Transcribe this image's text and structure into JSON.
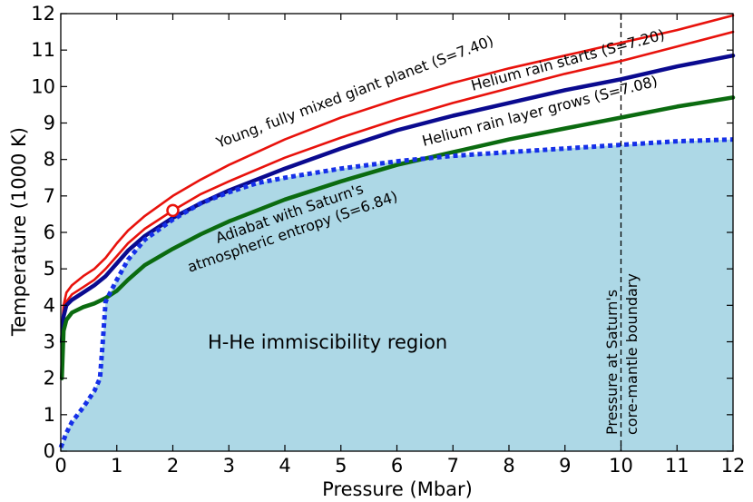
{
  "chart_data": {
    "type": "line",
    "title": "",
    "xlabel": "Pressure (Mbar)",
    "ylabel": "Temperature (1000 K)",
    "xlim": [
      0,
      12
    ],
    "ylim": [
      0,
      12
    ],
    "grid": false,
    "x_ticks": [
      "0",
      "1",
      "2",
      "3",
      "4",
      "5",
      "6",
      "7",
      "8",
      "9",
      "10",
      "11",
      "12"
    ],
    "y_ticks": [
      "0",
      "1",
      "2",
      "3",
      "4",
      "5",
      "6",
      "7",
      "8",
      "9",
      "10",
      "11",
      "12"
    ],
    "series": [
      {
        "name": "Young, fully mixed  giant planet (S=7.40)",
        "color": "#e8120c",
        "width": 2.6,
        "points": [
          [
            0.02,
            3.3
          ],
          [
            0.05,
            4.0
          ],
          [
            0.1,
            4.35
          ],
          [
            0.2,
            4.55
          ],
          [
            0.4,
            4.8
          ],
          [
            0.6,
            5.0
          ],
          [
            0.8,
            5.3
          ],
          [
            1,
            5.7
          ],
          [
            1.2,
            6.05
          ],
          [
            1.5,
            6.45
          ],
          [
            2,
            7.0
          ],
          [
            2.5,
            7.45
          ],
          [
            3,
            7.85
          ],
          [
            4,
            8.55
          ],
          [
            5,
            9.15
          ],
          [
            6,
            9.65
          ],
          [
            7,
            10.1
          ],
          [
            8,
            10.5
          ],
          [
            9,
            10.85
          ],
          [
            10,
            11.2
          ],
          [
            11,
            11.55
          ],
          [
            12,
            11.95
          ]
        ]
      },
      {
        "name": "Helium rain starts (S=7.20)",
        "color": "#e8120c",
        "width": 2.6,
        "points": [
          [
            0.02,
            3.1
          ],
          [
            0.05,
            3.8
          ],
          [
            0.1,
            4.1
          ],
          [
            0.2,
            4.3
          ],
          [
            0.4,
            4.5
          ],
          [
            0.6,
            4.7
          ],
          [
            0.8,
            5.0
          ],
          [
            1,
            5.35
          ],
          [
            1.2,
            5.7
          ],
          [
            1.5,
            6.1
          ],
          [
            2,
            6.6
          ],
          [
            2.5,
            7.05
          ],
          [
            3,
            7.4
          ],
          [
            4,
            8.05
          ],
          [
            5,
            8.6
          ],
          [
            6,
            9.1
          ],
          [
            7,
            9.55
          ],
          [
            8,
            9.95
          ],
          [
            9,
            10.35
          ],
          [
            10,
            10.7
          ],
          [
            11,
            11.1
          ],
          [
            12,
            11.5
          ]
        ]
      },
      {
        "name": "Helium rain layer grows (S=7.08)",
        "color": "#0a0a8f",
        "width": 4.5,
        "points": [
          [
            0.02,
            3.0
          ],
          [
            0.05,
            3.7
          ],
          [
            0.1,
            4.0
          ],
          [
            0.2,
            4.15
          ],
          [
            0.4,
            4.35
          ],
          [
            0.6,
            4.55
          ],
          [
            0.8,
            4.8
          ],
          [
            1,
            5.15
          ],
          [
            1.2,
            5.5
          ],
          [
            1.5,
            5.9
          ],
          [
            2,
            6.4
          ],
          [
            2.5,
            6.8
          ],
          [
            3,
            7.15
          ],
          [
            4,
            7.75
          ],
          [
            5,
            8.3
          ],
          [
            6,
            8.8
          ],
          [
            7,
            9.2
          ],
          [
            8,
            9.55
          ],
          [
            9,
            9.9
          ],
          [
            10,
            10.2
          ],
          [
            11,
            10.55
          ],
          [
            12,
            10.85
          ]
        ]
      },
      {
        "name": "Adiabat with Saturn's atmospheric entropy (S=6.84)",
        "color": "#0b6b10",
        "width": 4.5,
        "points": [
          [
            0.02,
            2.0
          ],
          [
            0.05,
            3.3
          ],
          [
            0.1,
            3.6
          ],
          [
            0.2,
            3.8
          ],
          [
            0.4,
            3.95
          ],
          [
            0.6,
            4.05
          ],
          [
            0.8,
            4.2
          ],
          [
            1,
            4.4
          ],
          [
            1.2,
            4.7
          ],
          [
            1.5,
            5.1
          ],
          [
            2,
            5.55
          ],
          [
            2.5,
            5.95
          ],
          [
            3,
            6.3
          ],
          [
            4,
            6.9
          ],
          [
            5,
            7.4
          ],
          [
            6,
            7.85
          ],
          [
            7,
            8.2
          ],
          [
            8,
            8.55
          ],
          [
            9,
            8.85
          ],
          [
            10,
            9.15
          ],
          [
            11,
            9.45
          ],
          [
            12,
            9.7
          ]
        ]
      }
    ],
    "immiscibility_boundary": {
      "name": "H-He immiscibility boundary",
      "color": "#1530e8",
      "style": "dotted",
      "points": [
        [
          0,
          0.1
        ],
        [
          0.1,
          0.5
        ],
        [
          0.2,
          0.8
        ],
        [
          0.4,
          1.2
        ],
        [
          0.6,
          1.65
        ],
        [
          0.7,
          2.0
        ],
        [
          0.75,
          3.0
        ],
        [
          0.8,
          4.1
        ],
        [
          1.0,
          4.7
        ],
        [
          1.2,
          5.25
        ],
        [
          1.5,
          5.8
        ],
        [
          2.0,
          6.35
        ],
        [
          2.5,
          6.8
        ],
        [
          3.0,
          7.1
        ],
        [
          3.5,
          7.35
        ],
        [
          4.0,
          7.5
        ],
        [
          5.0,
          7.75
        ],
        [
          6.0,
          7.95
        ],
        [
          7.0,
          8.1
        ],
        [
          8.0,
          8.2
        ],
        [
          9.0,
          8.3
        ],
        [
          10.0,
          8.4
        ],
        [
          11.0,
          8.5
        ],
        [
          12.0,
          8.55
        ]
      ],
      "fill_color": "#add8e6"
    },
    "marker": {
      "x": 2.0,
      "y": 6.6,
      "color": "#e8120c"
    },
    "vline": {
      "x": 10
    },
    "annotations": {
      "young": "Young, fully mixed  giant planet (S=7.40)",
      "rain_starts": "Helium rain starts  (S=7.20)",
      "rain_grows": "Helium rain layer grows  (S=7.08)",
      "adiabat_line1": "Adiabat with Saturn's",
      "adiabat_line2": "atmospheric entropy (S=6.84)",
      "region": "H-He immiscibility region",
      "core_line1": "Pressure at Saturn's",
      "core_line2": "core-mantle boundary"
    }
  }
}
